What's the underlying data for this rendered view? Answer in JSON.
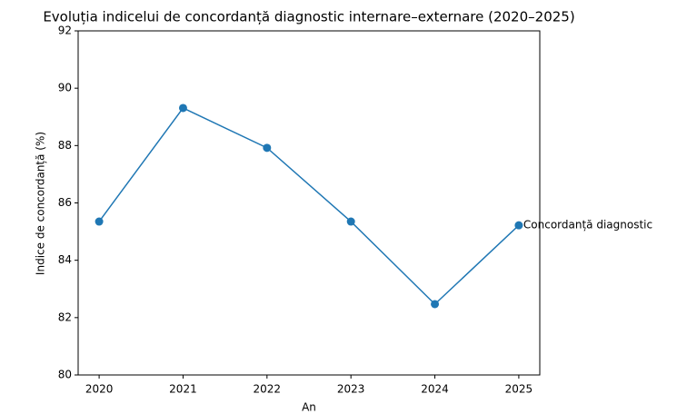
{
  "chart_data": {
    "type": "line",
    "title": "Evoluția indicelui de concordanță diagnostic internare–externare (2020–2025)",
    "x_label": "An",
    "y_label": "Indice de concordanță (%)",
    "x": [
      2020,
      2021,
      2022,
      2023,
      2024,
      2025
    ],
    "series": [
      {
        "name": "Concordanță diagnostic",
        "color": "#1f77b4",
        "values": [
          85.35,
          89.31,
          87.92,
          85.35,
          82.47,
          85.22
        ]
      }
    ],
    "xlim": [
      2019.75,
      2025.25
    ],
    "xticks": [
      2020,
      2021,
      2022,
      2023,
      2024,
      2025
    ],
    "ylim": [
      80,
      92
    ],
    "yticks": [
      80,
      82,
      84,
      86,
      88,
      90,
      92
    ],
    "grid": false
  }
}
